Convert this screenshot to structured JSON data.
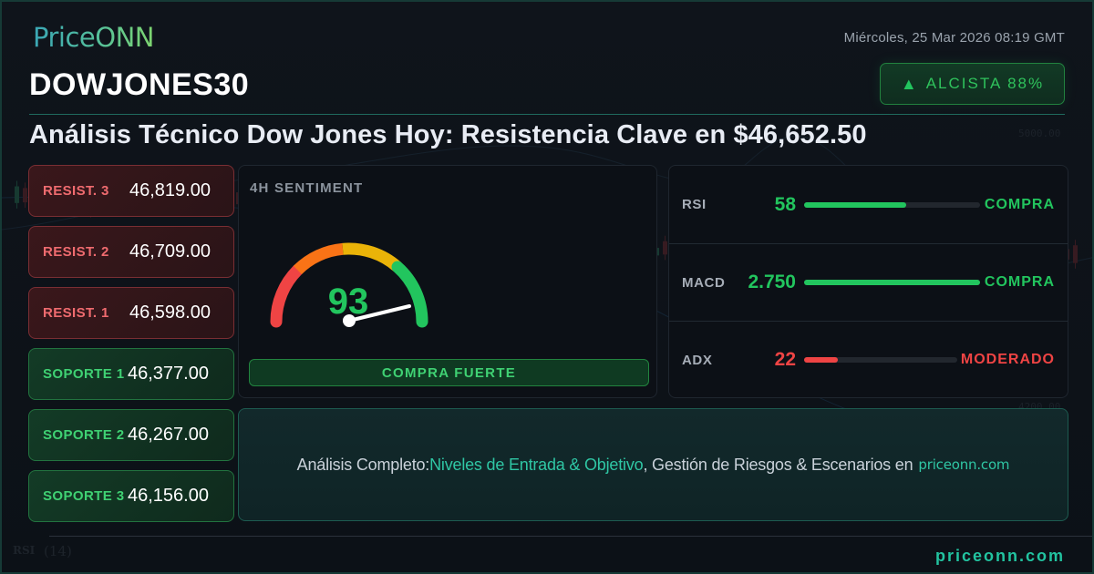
{
  "brand": {
    "logo_text": "PriceONN",
    "footer_site": "priceonn.com"
  },
  "header": {
    "date": "Miércoles, 25 Mar 2026 08:19 GMT",
    "symbol": "DOWJONES30",
    "trend_badge": {
      "icon": "triangle-up-icon",
      "glyph": "▲",
      "label": "ALCISTA 88%"
    },
    "headline": "Análisis Técnico Dow Jones Hoy: Resistencia Clave en $46,652.50"
  },
  "levels": [
    {
      "type": "resistance",
      "label": "RESIST. 3",
      "value": "46,819.00"
    },
    {
      "type": "resistance",
      "label": "RESIST. 2",
      "value": "46,709.00"
    },
    {
      "type": "resistance",
      "label": "RESIST. 1",
      "value": "46,598.00"
    },
    {
      "type": "support",
      "label": "SOPORTE 1",
      "value": "46,377.00"
    },
    {
      "type": "support",
      "label": "SOPORTE 2",
      "value": "46,267.00"
    },
    {
      "type": "support",
      "label": "SOPORTE 3",
      "value": "46,156.00"
    }
  ],
  "sentiment": {
    "title": "4H SENTIMENT",
    "value": "93",
    "signal": "COMPRA FUERTE",
    "gauge_segments": [
      "#ef4444",
      "#f97316",
      "#eab308",
      "#22c55e"
    ]
  },
  "indicators": [
    {
      "name": "RSI",
      "value": "58",
      "fill_pct": 58,
      "signal": "COMPRA",
      "color": "#22c55e",
      "track_width": 193
    },
    {
      "name": "MACD",
      "value": "2.750",
      "fill_pct": 100,
      "signal": "COMPRA",
      "color": "#22c55e",
      "track_width": 193
    },
    {
      "name": "ADX",
      "value": "22",
      "fill_pct": 22,
      "signal": "MODERADO",
      "color": "#ef4444",
      "track_width": 168
    }
  ],
  "cta": {
    "prefix": "Análisis Completo: ",
    "accent": "Niveles de Entrada & Objetivo",
    "middle": ", Gestión de Riesgos & Escenarios en",
    "site": "priceonn.com"
  },
  "background": {
    "axis_labels": [
      "5200.00",
      "5000.00",
      "4200.00"
    ],
    "rsi_label": "RSI",
    "rsi_period": "(14)"
  },
  "colors": {
    "bull": "#22c55e",
    "bear": "#ef4444",
    "accent": "#2fc6a4"
  }
}
